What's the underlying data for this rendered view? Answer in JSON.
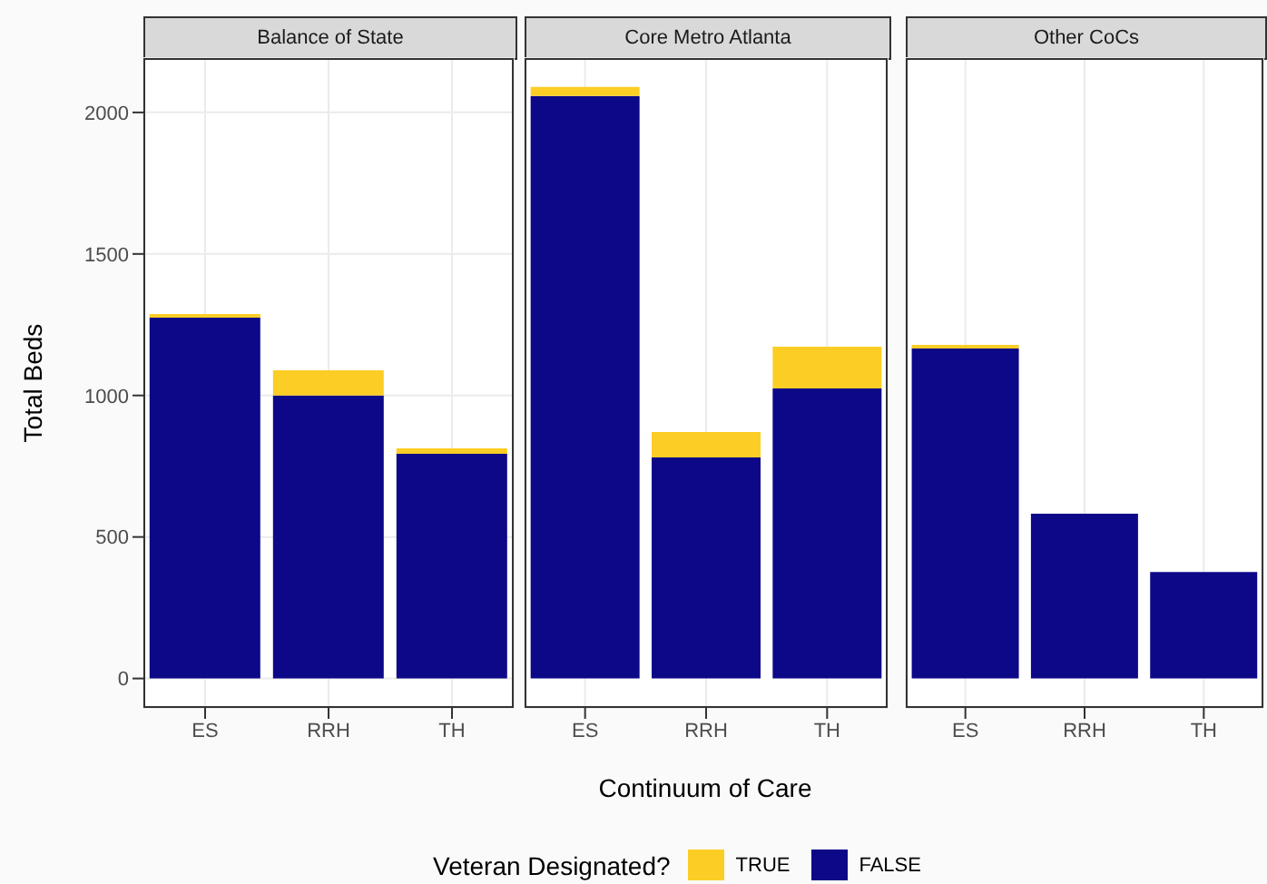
{
  "chart_data": [
    {
      "type": "bar",
      "title": "Balance of State",
      "ylabel": "Total Beds",
      "legend_title": "Veteran Designated?",
      "legend": "bottom",
      "categories": [
        "ES",
        "RRH",
        "TH"
      ],
      "stacked": true,
      "ylim": [
        -104,
        2192
      ],
      "yticks": [
        0,
        500,
        1000,
        1500,
        2000
      ],
      "grid": true,
      "series": [
        {
          "name": "FALSE",
          "color": "#0d0887",
          "values": [
            1275,
            1000,
            794
          ]
        },
        {
          "name": "TRUE",
          "color": "#fccd25",
          "values": [
            13,
            89,
            19
          ]
        }
      ]
    },
    {
      "type": "bar",
      "title": "Core Metro Atlanta",
      "xlabel": "Continuum of Care",
      "categories": [
        "ES",
        "RRH",
        "TH"
      ],
      "stacked": true,
      "ylim": [
        -104,
        2192
      ],
      "yticks": [
        0,
        500,
        1000,
        1500,
        2000
      ],
      "grid": true,
      "tick_labels": "x",
      "series": [
        {
          "color": "#0d0887",
          "values": [
            2058,
            781,
            1025
          ]
        },
        {
          "color": "#fccd25",
          "values": [
            32,
            90,
            147
          ]
        }
      ]
    },
    {
      "type": "bar",
      "title": "Other CoCs",
      "categories": [
        "ES",
        "RRH",
        "TH"
      ],
      "stacked": true,
      "ylim": [
        -104,
        2192
      ],
      "yticks": [
        0,
        500,
        1000,
        1500,
        2000
      ],
      "grid": true,
      "tick_labels": "x",
      "series": [
        {
          "color": "#0d0887",
          "values": [
            1166,
            582,
            376
          ]
        },
        {
          "color": "#fccd25",
          "values": [
            13,
            0,
            0
          ]
        }
      ]
    }
  ]
}
